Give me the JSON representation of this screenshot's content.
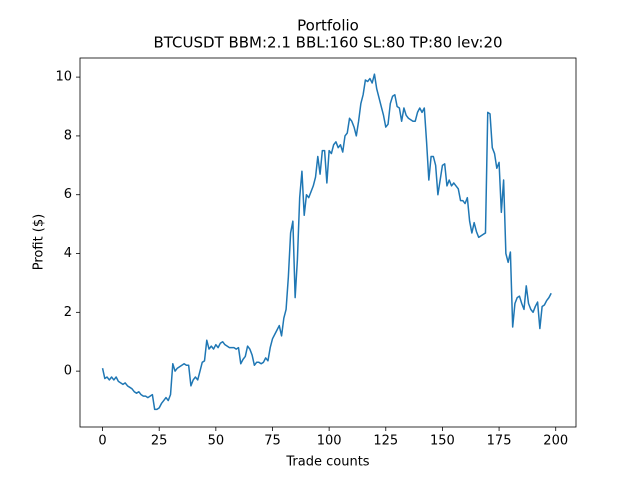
{
  "chart_data": {
    "type": "line",
    "title": "Portfolio",
    "subtitle": "BTCUSDT BBM:2.1 BBL:160 SL:80 TP:80 lev:20",
    "x_label": "Trade counts",
    "y_label": "Profit ($)",
    "color": "#1f77b4",
    "x": [
      0,
      1,
      2,
      3,
      4,
      5,
      6,
      7,
      8,
      9,
      10,
      11,
      12,
      13,
      14,
      15,
      16,
      17,
      18,
      19,
      20,
      21,
      22,
      23,
      24,
      25,
      26,
      27,
      28,
      29,
      30,
      31,
      32,
      33,
      34,
      35,
      36,
      37,
      38,
      39,
      40,
      41,
      42,
      43,
      44,
      45,
      46,
      47,
      48,
      49,
      50,
      51,
      52,
      53,
      54,
      55,
      56,
      57,
      58,
      59,
      60,
      61,
      62,
      63,
      64,
      65,
      66,
      67,
      68,
      69,
      70,
      71,
      72,
      73,
      74,
      75,
      76,
      77,
      78,
      79,
      80,
      81,
      82,
      83,
      84,
      85,
      86,
      87,
      88,
      89,
      90,
      91,
      92,
      93,
      94,
      95,
      96,
      97,
      98,
      99,
      100,
      101,
      102,
      103,
      104,
      105,
      106,
      107,
      108,
      109,
      110,
      111,
      112,
      113,
      114,
      115,
      116,
      117,
      118,
      119,
      120,
      121,
      122,
      123,
      124,
      125,
      126,
      127,
      128,
      129,
      130,
      131,
      132,
      133,
      134,
      135,
      136,
      137,
      138,
      139,
      140,
      141,
      142,
      143,
      144,
      145,
      146,
      147,
      148,
      149,
      150,
      151,
      152,
      153,
      154,
      155,
      156,
      157,
      158,
      159,
      160,
      161,
      162,
      163,
      164,
      165,
      166,
      167,
      168,
      169,
      170,
      171,
      172,
      173,
      174,
      175,
      176,
      177,
      178,
      179,
      180,
      181,
      182,
      183,
      184,
      185,
      186,
      187,
      188,
      189,
      190,
      191,
      192,
      193,
      194,
      195,
      196,
      197,
      198
    ],
    "values": [
      0.1,
      -0.25,
      -0.2,
      -0.3,
      -0.2,
      -0.3,
      -0.2,
      -0.35,
      -0.4,
      -0.45,
      -0.4,
      -0.5,
      -0.55,
      -0.6,
      -0.7,
      -0.75,
      -0.7,
      -0.8,
      -0.85,
      -0.85,
      -0.9,
      -0.85,
      -0.8,
      -1.3,
      -1.3,
      -1.25,
      -1.1,
      -1.0,
      -0.9,
      -1.0,
      -0.8,
      0.25,
      0.0,
      0.1,
      0.15,
      0.2,
      0.25,
      0.2,
      0.2,
      -0.5,
      -0.3,
      -0.2,
      -0.3,
      0.0,
      0.3,
      0.35,
      1.05,
      0.75,
      0.85,
      0.75,
      0.9,
      0.8,
      0.95,
      1.0,
      0.9,
      0.85,
      0.8,
      0.8,
      0.8,
      0.75,
      0.8,
      0.25,
      0.4,
      0.5,
      0.85,
      0.75,
      0.55,
      0.2,
      0.3,
      0.3,
      0.25,
      0.3,
      0.45,
      0.35,
      0.8,
      1.1,
      1.25,
      1.4,
      1.55,
      1.2,
      1.8,
      2.1,
      3.2,
      4.7,
      5.1,
      2.5,
      3.8,
      5.9,
      6.8,
      5.3,
      6.0,
      5.9,
      6.1,
      6.3,
      6.6,
      7.3,
      6.7,
      7.5,
      7.5,
      6.4,
      7.5,
      7.4,
      7.7,
      7.8,
      7.6,
      7.7,
      7.45,
      8.0,
      8.1,
      8.6,
      8.5,
      8.3,
      8.0,
      8.5,
      9.1,
      9.4,
      9.9,
      9.85,
      9.95,
      9.8,
      10.1,
      9.6,
      9.3,
      9.0,
      8.7,
      8.3,
      8.4,
      9.1,
      9.35,
      9.4,
      9.0,
      8.95,
      8.5,
      8.95,
      8.7,
      8.6,
      8.55,
      8.5,
      8.5,
      8.8,
      8.95,
      8.8,
      8.95,
      7.8,
      6.5,
      7.3,
      7.3,
      7.0,
      6.0,
      6.5,
      7.0,
      7.05,
      6.3,
      6.5,
      6.3,
      6.4,
      6.3,
      6.2,
      5.8,
      5.8,
      5.7,
      5.9,
      5.1,
      4.7,
      5.05,
      4.75,
      4.55,
      4.6,
      4.65,
      4.7,
      8.8,
      8.75,
      7.6,
      7.4,
      6.9,
      7.1,
      5.4,
      6.5,
      4.0,
      3.7,
      4.05,
      1.5,
      2.3,
      2.5,
      2.55,
      2.3,
      2.1,
      2.9,
      2.3,
      2.1,
      2.0,
      2.2,
      2.35,
      1.45,
      2.2,
      2.25,
      2.4,
      2.5,
      2.65
    ],
    "xlim": [
      -9.95,
      208.95
    ],
    "ylim": [
      -1.9,
      10.65
    ],
    "xticks": [
      0,
      25,
      50,
      75,
      100,
      125,
      150,
      175,
      200
    ],
    "yticks": [
      0,
      2,
      4,
      6,
      8,
      10
    ]
  }
}
